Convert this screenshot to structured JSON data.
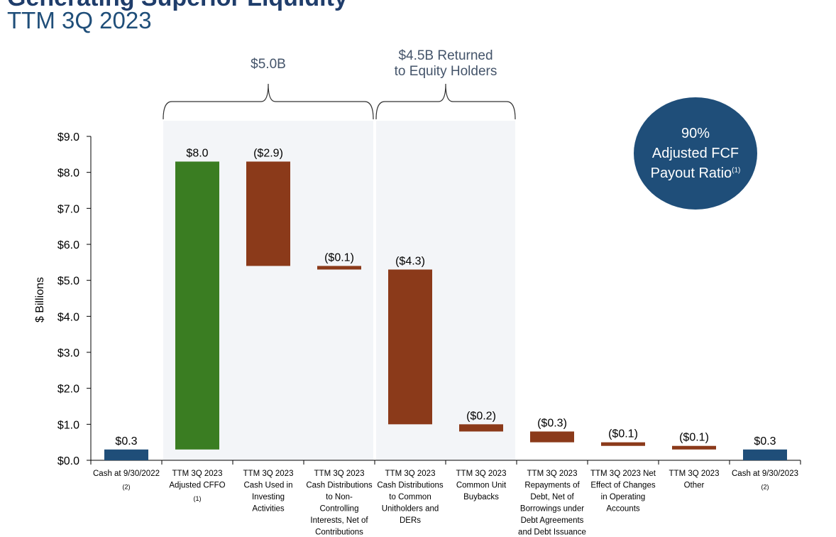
{
  "header": {
    "title_fragment": "Generating Superior Liquidity",
    "subtitle": "TTM 3Q 2023"
  },
  "brackets": [
    {
      "lines": [
        "$5.0B"
      ]
    },
    {
      "lines": [
        "$4.5B Returned",
        "to Equity Holders"
      ]
    }
  ],
  "badge": {
    "line1": "90%",
    "line2": "Adjusted FCF",
    "line3": "Payout Ratio",
    "footnote": "(1)"
  },
  "colors": {
    "green": "#3a7d22",
    "brown": "#8b3a1a",
    "navy": "#1f4e79",
    "shade": "#f3f5f8"
  },
  "chart_data": {
    "type": "bar",
    "subtype": "waterfall",
    "ylabel": "$ Billions",
    "ylim": [
      0,
      9
    ],
    "yticks": [
      "$0.0",
      "$1.0",
      "$2.0",
      "$3.0",
      "$4.0",
      "$5.0",
      "$6.0",
      "$7.0",
      "$8.0",
      "$9.0"
    ],
    "grid": false,
    "categories": [
      {
        "lines": [
          "Cash at 9/30/2022"
        ],
        "note": "(2)"
      },
      {
        "lines": [
          "TTM 3Q 2023",
          "Adjusted CFFO"
        ],
        "note": "(1)"
      },
      {
        "lines": [
          "TTM 3Q 2023",
          "Cash Used in",
          "Investing",
          "Activities"
        ],
        "note": ""
      },
      {
        "lines": [
          "TTM 3Q 2023",
          "Cash Distributions",
          "to Non-",
          "Controlling",
          "Interests, Net of",
          "Contributions"
        ],
        "note": ""
      },
      {
        "lines": [
          "TTM 3Q 2023",
          "Cash Distributions",
          "to Common",
          "Unitholders and",
          "DERs"
        ],
        "note": ""
      },
      {
        "lines": [
          "TTM 3Q 2023",
          "Common Unit",
          "Buybacks"
        ],
        "note": ""
      },
      {
        "lines": [
          "TTM 3Q 2023",
          "Repayments of",
          "Debt, Net of",
          "Borrowings under",
          "Debt Agreements",
          "and Debt Issuance"
        ],
        "note": ""
      },
      {
        "lines": [
          "TTM 3Q 2023 Net",
          "Effect of Changes",
          "in Operating",
          "Accounts"
        ],
        "note": ""
      },
      {
        "lines": [
          "TTM 3Q 2023",
          "Other"
        ],
        "note": ""
      },
      {
        "lines": [
          "Cash at 9/30/2023"
        ],
        "note": "(2)"
      }
    ],
    "bars": [
      {
        "label": "$0.3",
        "bottom": 0.0,
        "top": 0.3,
        "kind": "total"
      },
      {
        "label": "$8.0",
        "bottom": 0.3,
        "top": 8.3,
        "kind": "increase"
      },
      {
        "label": "($2.9)",
        "bottom": 5.4,
        "top": 8.3,
        "kind": "decrease"
      },
      {
        "label": "($0.1)",
        "bottom": 5.3,
        "top": 5.4,
        "kind": "decrease"
      },
      {
        "label": "($4.3)",
        "bottom": 1.0,
        "top": 5.3,
        "kind": "decrease"
      },
      {
        "label": "($0.2)",
        "bottom": 0.8,
        "top": 1.0,
        "kind": "decrease"
      },
      {
        "label": "($0.3)",
        "bottom": 0.5,
        "top": 0.8,
        "kind": "decrease"
      },
      {
        "label": "($0.1)",
        "bottom": 0.4,
        "top": 0.5,
        "kind": "decrease"
      },
      {
        "label": "($0.1)",
        "bottom": 0.3,
        "top": 0.4,
        "kind": "decrease"
      },
      {
        "label": "$0.3",
        "bottom": 0.0,
        "top": 0.3,
        "kind": "total"
      }
    ],
    "bracket_groups": [
      {
        "from": 1,
        "to": 3
      },
      {
        "from": 4,
        "to": 5
      }
    ]
  }
}
